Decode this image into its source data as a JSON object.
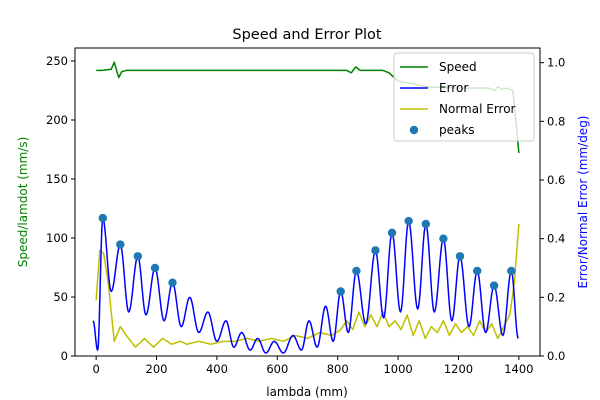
{
  "chart_data": {
    "type": "line",
    "title": "Speed and Error Plot",
    "xlabel": "lambda (mm)",
    "ylabel_left": "Speed/lamdot (mm/s)",
    "ylabel_right": "Error/Normal Error (mm/deg)",
    "xlim": [
      -70,
      1470
    ],
    "ylim_left": [
      0,
      261
    ],
    "ylim_right": [
      0,
      1.05
    ],
    "xticks": [
      0,
      200,
      400,
      600,
      800,
      1000,
      1200,
      1400
    ],
    "yticks_left": [
      0,
      50,
      100,
      150,
      200,
      250
    ],
    "yticks_right": [
      0.0,
      0.2,
      0.4,
      0.6,
      0.8,
      1.0
    ],
    "yticks_right_labels": [
      "0.0",
      "0.2",
      "0.4",
      "0.6",
      "0.8",
      "1.0"
    ],
    "grid": false,
    "legend_position": "top-right",
    "colors": {
      "speed": "#008000",
      "error": "#0000ff",
      "normal_error": "#bfbf00",
      "peaks": "#1f77b4",
      "left_axis_label": "#008000",
      "right_axis_label": "#0000ff"
    },
    "legend": [
      "Speed",
      "Error",
      "Normal Error",
      "peaks"
    ],
    "series": [
      {
        "name": "Speed",
        "axis": "left",
        "x": [
          0,
          20,
          50,
          60,
          70,
          75,
          85,
          100,
          150,
          200,
          300,
          400,
          500,
          600,
          700,
          800,
          830,
          845,
          860,
          875,
          890,
          950,
          970,
          1000,
          1100,
          1200,
          1250,
          1300,
          1320,
          1330,
          1345,
          1360,
          1380,
          1390,
          1400
        ],
        "y": [
          242,
          242,
          243,
          249,
          240,
          236,
          241,
          242,
          242,
          242,
          242,
          242,
          242,
          242,
          242,
          242,
          242,
          240,
          245,
          242,
          242,
          242,
          240,
          233,
          228,
          227,
          227,
          227,
          225,
          228,
          226,
          227,
          225,
          200,
          172
        ]
      },
      {
        "name": "Error",
        "axis": "right",
        "peaks_x": [
          -10,
          22,
          80,
          138,
          195,
          253,
          310,
          370,
          430,
          482,
          535,
          590,
          652,
          705,
          760,
          810,
          862,
          925,
          980,
          1035,
          1092,
          1150,
          1205,
          1262,
          1318,
          1375
        ],
        "peaks_y": [
          0.12,
          0.47,
          0.38,
          0.34,
          0.3,
          0.25,
          0.2,
          0.15,
          0.12,
          0.08,
          0.06,
          0.05,
          0.07,
          0.12,
          0.17,
          0.22,
          0.29,
          0.36,
          0.42,
          0.46,
          0.45,
          0.4,
          0.34,
          0.29,
          0.24,
          0.29
        ],
        "valleys_x": [
          5,
          50,
          108,
          165,
          225,
          282,
          340,
          400,
          456,
          510,
          562,
          620,
          680,
          732,
          785,
          835,
          893,
          952,
          1008,
          1065,
          1120,
          1178,
          1235,
          1290,
          1347,
          1398
        ],
        "valleys_y": [
          0.02,
          0.22,
          0.15,
          0.14,
          0.12,
          0.1,
          0.08,
          0.05,
          0.03,
          0.02,
          0.01,
          0.01,
          0.02,
          0.03,
          0.05,
          0.08,
          0.11,
          0.13,
          0.15,
          0.16,
          0.15,
          0.12,
          0.1,
          0.08,
          0.07,
          0.06
        ]
      },
      {
        "name": "Normal Error",
        "axis": "right",
        "x": [
          0,
          12,
          25,
          40,
          60,
          80,
          100,
          130,
          160,
          190,
          220,
          250,
          280,
          300,
          340,
          380,
          420,
          460,
          500,
          540,
          580,
          620,
          660,
          700,
          740,
          780,
          810,
          830,
          850,
          870,
          890,
          910,
          930,
          950,
          970,
          990,
          1010,
          1030,
          1050,
          1070,
          1090,
          1110,
          1130,
          1150,
          1170,
          1190,
          1210,
          1230,
          1250,
          1270,
          1290,
          1310,
          1330,
          1350,
          1370,
          1385,
          1400
        ],
        "y": [
          0.19,
          0.36,
          0.35,
          0.25,
          0.05,
          0.1,
          0.07,
          0.03,
          0.06,
          0.03,
          0.06,
          0.04,
          0.05,
          0.04,
          0.05,
          0.04,
          0.05,
          0.05,
          0.06,
          0.05,
          0.06,
          0.05,
          0.07,
          0.06,
          0.08,
          0.07,
          0.09,
          0.12,
          0.09,
          0.15,
          0.1,
          0.14,
          0.1,
          0.15,
          0.1,
          0.12,
          0.09,
          0.14,
          0.07,
          0.12,
          0.06,
          0.1,
          0.08,
          0.12,
          0.07,
          0.11,
          0.08,
          0.1,
          0.07,
          0.12,
          0.08,
          0.11,
          0.06,
          0.1,
          0.14,
          0.25,
          0.45
        ]
      }
    ],
    "peaks": {
      "name": "peaks",
      "axis": "right",
      "x": [
        22,
        80,
        138,
        195,
        253,
        810,
        862,
        925,
        980,
        1035,
        1092,
        1150,
        1205,
        1262,
        1318,
        1375
      ],
      "y": [
        0.47,
        0.38,
        0.34,
        0.3,
        0.25,
        0.22,
        0.29,
        0.36,
        0.42,
        0.46,
        0.45,
        0.4,
        0.34,
        0.29,
        0.24,
        0.29
      ]
    }
  }
}
